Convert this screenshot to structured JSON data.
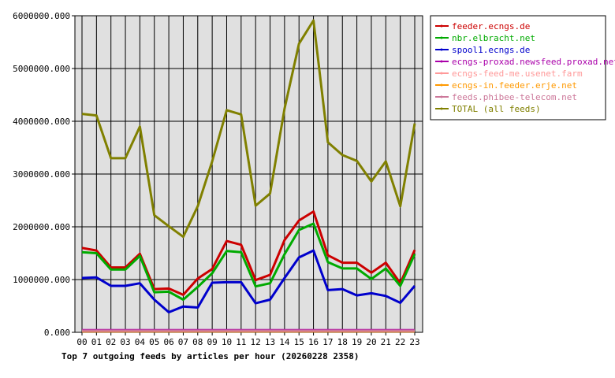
{
  "chart_data": {
    "type": "line",
    "title": "Top 7 outgoing feeds by articles per hour (20260228 2358)",
    "xlabel": "",
    "ylabel": "",
    "ylim": [
      0,
      6000000
    ],
    "yticks": [
      "0.000",
      "1000000.000",
      "2000000.000",
      "3000000.000",
      "4000000.000",
      "5000000.000",
      "6000000.000"
    ],
    "categories": [
      "00",
      "01",
      "02",
      "03",
      "04",
      "05",
      "06",
      "07",
      "08",
      "09",
      "10",
      "11",
      "12",
      "13",
      "14",
      "15",
      "16",
      "17",
      "18",
      "19",
      "20",
      "21",
      "22",
      "23"
    ],
    "grid": true,
    "legend_position": "top-right",
    "series": [
      {
        "name": "feeder.ecngs.de",
        "color": "#cc0000",
        "values": [
          1600000,
          1550000,
          1230000,
          1230000,
          1490000,
          820000,
          830000,
          710000,
          1020000,
          1200000,
          1730000,
          1660000,
          990000,
          1090000,
          1750000,
          2120000,
          2290000,
          1460000,
          1320000,
          1320000,
          1130000,
          1320000,
          930000,
          1560000
        ]
      },
      {
        "name": "nbr.elbracht.net",
        "color": "#00aa00",
        "values": [
          1520000,
          1500000,
          1190000,
          1190000,
          1450000,
          760000,
          770000,
          620000,
          860000,
          1120000,
          1540000,
          1520000,
          870000,
          930000,
          1480000,
          1940000,
          2060000,
          1330000,
          1210000,
          1210000,
          1010000,
          1210000,
          880000,
          1480000
        ]
      },
      {
        "name": "spool1.ecngs.de",
        "color": "#0000cc",
        "values": [
          1030000,
          1040000,
          880000,
          880000,
          930000,
          620000,
          380000,
          490000,
          470000,
          940000,
          950000,
          950000,
          550000,
          620000,
          1030000,
          1420000,
          1550000,
          800000,
          820000,
          700000,
          740000,
          690000,
          560000,
          880000
        ]
      },
      {
        "name": "ecngs-proxad.newsfeed.proxad.net",
        "color": "#aa00aa",
        "values": [
          40000,
          40000,
          40000,
          40000,
          40000,
          40000,
          40000,
          40000,
          40000,
          40000,
          40000,
          40000,
          40000,
          40000,
          40000,
          40000,
          40000,
          40000,
          40000,
          40000,
          40000,
          40000,
          40000,
          40000
        ]
      },
      {
        "name": "ecngs-feed-me.usenet.farm",
        "color": "#ff9999",
        "values": [
          30000,
          30000,
          30000,
          30000,
          30000,
          30000,
          30000,
          30000,
          30000,
          30000,
          30000,
          30000,
          30000,
          30000,
          30000,
          30000,
          30000,
          30000,
          30000,
          30000,
          30000,
          30000,
          30000,
          30000
        ]
      },
      {
        "name": "ecngs-in.feeder.erje.net",
        "color": "#ff9900",
        "values": [
          20000,
          20000,
          20000,
          20000,
          20000,
          20000,
          20000,
          20000,
          20000,
          20000,
          20000,
          20000,
          20000,
          20000,
          20000,
          20000,
          20000,
          20000,
          20000,
          20000,
          20000,
          20000,
          20000,
          20000
        ]
      },
      {
        "name": "feeds.phibee-telecom.net",
        "color": "#cc7799",
        "values": [
          30000,
          30000,
          30000,
          30000,
          30000,
          30000,
          30000,
          30000,
          30000,
          30000,
          30000,
          30000,
          30000,
          30000,
          30000,
          30000,
          30000,
          30000,
          30000,
          30000,
          30000,
          30000,
          30000,
          30000
        ]
      },
      {
        "name": "TOTAL (all feeds)",
        "color": "#808000",
        "values": [
          4140000,
          4110000,
          3300000,
          3300000,
          3900000,
          2220000,
          2010000,
          1810000,
          2390000,
          3240000,
          4210000,
          4130000,
          2400000,
          2630000,
          4240000,
          5470000,
          5910000,
          3600000,
          3360000,
          3250000,
          2860000,
          3240000,
          2390000,
          3960000
        ]
      }
    ]
  }
}
